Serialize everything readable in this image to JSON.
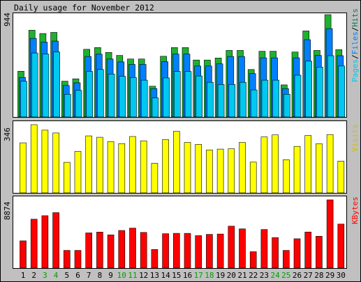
{
  "title": "Daily usage for November 2012",
  "colors": {
    "hits": "#00805c",
    "hits_fill": "#20b030",
    "files": "#0080ff",
    "pages": "#00c8f0",
    "visits": "#ffff00",
    "kbytes": "#ff0000",
    "weekend_label": "#00a000",
    "weekday_label": "#000000",
    "frame_bg": "#c0c0c0",
    "panel_bg": "#ffffff"
  },
  "chart_data": [
    {
      "type": "bar",
      "name": "pages-files-hits",
      "max_label": "944",
      "ylim": [
        0,
        944
      ],
      "legend": {
        "pages": "Pages",
        "sep1": "/",
        "files": "Files",
        "sep2": "/",
        "hits": "Hits"
      },
      "series": [
        {
          "name": "Hits",
          "values": [
            422,
            800,
            770,
            780,
            330,
            352,
            624,
            640,
            595,
            568,
            535,
            535,
            284,
            560,
            640,
            640,
            525,
            525,
            544,
            614,
            614,
            438,
            606,
            606,
            296,
            599,
            794,
            614,
            944,
            621
          ]
        },
        {
          "name": "Files",
          "values": [
            365,
            725,
            690,
            700,
            290,
            315,
            558,
            579,
            535,
            508,
            485,
            485,
            262,
            510,
            580,
            580,
            470,
            470,
            490,
            558,
            558,
            400,
            545,
            545,
            262,
            545,
            713,
            568,
            815,
            565
          ]
        },
        {
          "name": "Pages",
          "values": [
            330,
            590,
            580,
            600,
            210,
            245,
            420,
            438,
            396,
            375,
            364,
            340,
            175,
            360,
            420,
            420,
            378,
            320,
            300,
            300,
            320,
            250,
            340,
            340,
            210,
            385,
            515,
            460,
            565,
            470
          ]
        }
      ]
    },
    {
      "type": "bar",
      "name": "visits",
      "max_label": "346",
      "ylim": [
        0,
        346
      ],
      "legend": "Visits",
      "series": [
        {
          "name": "Visits",
          "values": [
            254,
            346,
            318,
            304,
            155,
            210,
            289,
            282,
            260,
            250,
            286,
            264,
            150,
            270,
            312,
            256,
            246,
            218,
            222,
            224,
            256,
            156,
            284,
            294,
            168,
            236,
            291,
            249,
            296,
            161
          ]
        }
      ]
    },
    {
      "type": "bar",
      "name": "kbytes",
      "max_label": "8874",
      "ylim": [
        0,
        8874
      ],
      "legend": "KBytes",
      "series": [
        {
          "name": "KBytes",
          "values": [
            3540,
            6360,
            6810,
            7210,
            2300,
            2300,
            4570,
            4680,
            4320,
            4890,
            5200,
            4640,
            2420,
            4470,
            4520,
            4520,
            4220,
            4380,
            4430,
            5450,
            5100,
            2130,
            5020,
            3970,
            2300,
            3810,
            4690,
            4140,
            8874,
            5720
          ]
        }
      ]
    }
  ],
  "days": [
    {
      "label": "1",
      "weekend": false
    },
    {
      "label": "2",
      "weekend": false
    },
    {
      "label": "3",
      "weekend": true
    },
    {
      "label": "4",
      "weekend": true
    },
    {
      "label": "5",
      "weekend": false
    },
    {
      "label": "6",
      "weekend": false
    },
    {
      "label": "7",
      "weekend": false
    },
    {
      "label": "8",
      "weekend": false
    },
    {
      "label": "9",
      "weekend": false
    },
    {
      "label": "10",
      "weekend": true
    },
    {
      "label": "11",
      "weekend": true
    },
    {
      "label": "12",
      "weekend": false
    },
    {
      "label": "13",
      "weekend": false
    },
    {
      "label": "14",
      "weekend": false
    },
    {
      "label": "15",
      "weekend": false
    },
    {
      "label": "16",
      "weekend": false
    },
    {
      "label": "17",
      "weekend": true
    },
    {
      "label": "18",
      "weekend": true
    },
    {
      "label": "19",
      "weekend": false
    },
    {
      "label": "20",
      "weekend": false
    },
    {
      "label": "21",
      "weekend": false
    },
    {
      "label": "22",
      "weekend": false
    },
    {
      "label": "23",
      "weekend": false
    },
    {
      "label": "24",
      "weekend": true
    },
    {
      "label": "25",
      "weekend": true
    },
    {
      "label": "26",
      "weekend": false
    },
    {
      "label": "27",
      "weekend": false
    },
    {
      "label": "28",
      "weekend": false
    },
    {
      "label": "29",
      "weekend": false
    },
    {
      "label": "30",
      "weekend": false
    }
  ]
}
